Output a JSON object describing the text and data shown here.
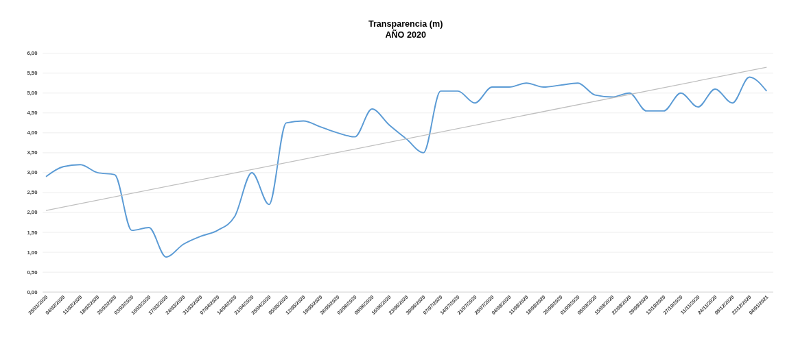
{
  "chart_data": {
    "type": "line",
    "title": "Transparencia (m)",
    "subtitle": "AÑO 2020",
    "categories": [
      "28/01/2020",
      "04/02/2020",
      "11/02/2020",
      "18/02/2020",
      "25/02/2020",
      "03/03/2020",
      "10/03/2020",
      "17/03/2020",
      "24/03/2020",
      "31/03/2020",
      "07/04/2020",
      "14/04/2020",
      "21/04/2020",
      "28/04/2020",
      "05/05/2020",
      "12/05/2020",
      "19/05/2020",
      "26/05/2020",
      "02/06/2020",
      "09/06/2020",
      "16/06/2020",
      "23/06/2020",
      "30/06/2020",
      "07/07/2020",
      "14/07/2020",
      "21/07/2020",
      "28/07/2020",
      "04/08/2020",
      "11/08/2020",
      "18/08/2020",
      "25/08/2020",
      "01/09/2020",
      "08/09/2020",
      "15/09/2020",
      "22/09/2020",
      "29/09/2020",
      "13/10/2020",
      "27/10/2020",
      "11/11/2020",
      "24/11/2020",
      "09/12/2020",
      "22/12/2020",
      "04/01/2021"
    ],
    "series": [
      {
        "color": "#5b9bd5",
        "values": [
          2.9,
          3.15,
          3.2,
          3.0,
          2.95,
          1.55,
          1.62,
          0.88,
          1.2,
          1.4,
          1.55,
          1.9,
          3.0,
          2.2,
          4.25,
          4.3,
          4.15,
          4.0,
          3.9,
          4.6,
          4.2,
          3.85,
          3.5,
          5.05,
          5.05,
          4.75,
          5.15,
          5.15,
          5.25,
          5.15,
          5.2,
          5.25,
          4.95,
          4.9,
          5.0,
          4.55,
          4.55,
          5.0,
          4.65,
          5.1,
          4.75,
          5.4,
          5.05
        ]
      },
      {
        "type": "line",
        "color": "#bfbfbf",
        "x": [
          "28/01/2020",
          "04/01/2021"
        ],
        "values": [
          2.05,
          5.65
        ]
      }
    ],
    "ylim": [
      0,
      6
    ],
    "yticks": [
      {
        "value": 0,
        "label": "0,00"
      },
      {
        "value": 0.5,
        "label": "0,50"
      },
      {
        "value": 1,
        "label": "1,00"
      },
      {
        "value": 1.5,
        "label": "1,50"
      },
      {
        "value": 2,
        "label": "2,00"
      },
      {
        "value": 2.5,
        "label": "2,50"
      },
      {
        "value": 3,
        "label": "3,00"
      },
      {
        "value": 3.5,
        "label": "3,50"
      },
      {
        "value": 4,
        "label": "4,00"
      },
      {
        "value": 4.5,
        "label": "4,50"
      },
      {
        "value": 5,
        "label": "5,00"
      },
      {
        "value": 5.5,
        "label": "5,50"
      },
      {
        "value": 6,
        "label": "6,00"
      }
    ],
    "grid": "y",
    "marker": "none",
    "line_style": "solid"
  }
}
